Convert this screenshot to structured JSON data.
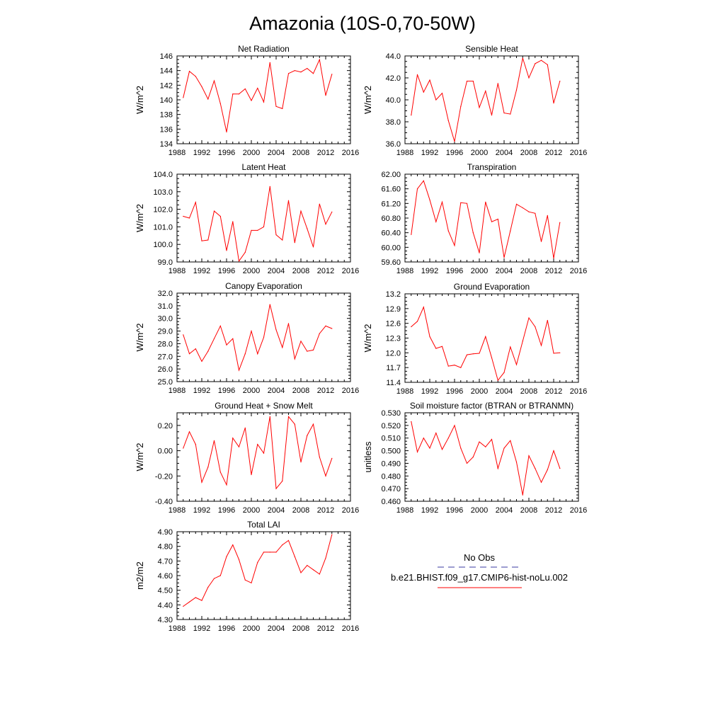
{
  "figure": {
    "title": "Amazonia (10S-0,70-50W)"
  },
  "colors": {
    "model": "#ff0000",
    "obs": "#3a3aa0"
  },
  "legend": {
    "placement": "bottom-right",
    "obs_label": "No Obs",
    "model_label": "b.e21.BHIST.f09_g17.CMIP6-hist-noLu.002"
  },
  "chart_data": [
    {
      "type": "line",
      "title": "Net Radiation",
      "ylabel": "W/m^2",
      "xlim": [
        1988,
        2016
      ],
      "xticks": [
        1988,
        1992,
        1996,
        2000,
        2004,
        2008,
        2012,
        2016
      ],
      "ylim": [
        134,
        146
      ],
      "yticks": [
        "134",
        "136",
        "138",
        "140",
        "142",
        "144",
        "146"
      ],
      "grid": false,
      "x": [
        1989,
        1990,
        1991,
        1992,
        1993,
        1994,
        1995,
        1996,
        1997,
        1998,
        1999,
        2000,
        2001,
        2002,
        2003,
        2004,
        2005,
        2006,
        2007,
        2008,
        2009,
        2010,
        2011,
        2012,
        2013
      ],
      "series": [
        {
          "name": "b.e21.BHIST.f09_g17.CMIP6-hist-noLu.002",
          "values": [
            140.3,
            143.9,
            143.2,
            141.8,
            140.1,
            142.6,
            139.5,
            135.6,
            140.8,
            140.8,
            141.5,
            139.9,
            141.6,
            139.7,
            145.1,
            139.1,
            138.8,
            143.6,
            144.0,
            143.8,
            144.3,
            143.6,
            145.5,
            140.6,
            143.5
          ]
        }
      ]
    },
    {
      "type": "line",
      "title": "Sensible Heat",
      "ylabel": "W/m^2",
      "xlim": [
        1988,
        2016
      ],
      "xticks": [
        1988,
        1992,
        1996,
        2000,
        2004,
        2008,
        2012,
        2016
      ],
      "ylim": [
        36.0,
        44.0
      ],
      "yticks": [
        "36.0",
        "38.0",
        "40.0",
        "42.0",
        "44.0"
      ],
      "grid": false,
      "x": [
        1989,
        1990,
        1991,
        1992,
        1993,
        1994,
        1995,
        1996,
        1997,
        1998,
        1999,
        2000,
        2001,
        2002,
        2003,
        2004,
        2005,
        2006,
        2007,
        2008,
        2009,
        2010,
        2011,
        2012,
        2013
      ],
      "series": [
        {
          "name": "b.e21.BHIST.f09_g17.CMIP6-hist-noLu.002",
          "values": [
            38.6,
            42.3,
            40.7,
            41.8,
            40.0,
            40.6,
            38.1,
            36.2,
            39.4,
            41.7,
            41.7,
            39.3,
            40.8,
            38.6,
            41.5,
            38.8,
            38.7,
            40.9,
            43.8,
            42.0,
            43.3,
            43.6,
            43.2,
            39.7,
            41.7
          ]
        }
      ]
    },
    {
      "type": "line",
      "title": "Latent Heat",
      "ylabel": "W/m^2",
      "xlim": [
        1988,
        2016
      ],
      "xticks": [
        1988,
        1992,
        1996,
        2000,
        2004,
        2008,
        2012,
        2016
      ],
      "ylim": [
        99.0,
        104.0
      ],
      "yticks": [
        "99.0",
        "100.0",
        "101.0",
        "102.0",
        "103.0",
        "104.0"
      ],
      "grid": false,
      "x": [
        1989,
        1990,
        1991,
        1992,
        1993,
        1994,
        1995,
        1996,
        1997,
        1998,
        1999,
        2000,
        2001,
        2002,
        2003,
        2004,
        2005,
        2006,
        2007,
        2008,
        2009,
        2010,
        2011,
        2012,
        2013
      ],
      "series": [
        {
          "name": "b.e21.BHIST.f09_g17.CMIP6-hist-noLu.002",
          "values": [
            101.6,
            101.5,
            102.4,
            100.2,
            100.25,
            101.9,
            101.6,
            99.65,
            101.3,
            99.05,
            99.55,
            100.8,
            100.8,
            101.0,
            103.3,
            100.55,
            100.25,
            102.5,
            100.1,
            101.9,
            100.9,
            99.85,
            102.3,
            101.15,
            101.85
          ]
        }
      ]
    },
    {
      "type": "line",
      "title": "Transpiration",
      "ylabel": "",
      "xlim": [
        1988,
        2016
      ],
      "xticks": [
        1988,
        1992,
        1996,
        2000,
        2004,
        2008,
        2012,
        2016
      ],
      "ylim": [
        59.6,
        62.0
      ],
      "yticks": [
        "59.60",
        "60.00",
        "60.40",
        "60.80",
        "61.20",
        "61.60",
        "62.00"
      ],
      "grid": false,
      "x": [
        1989,
        1990,
        1991,
        1992,
        1993,
        1994,
        1995,
        1996,
        1997,
        1998,
        1999,
        2000,
        2001,
        2002,
        2003,
        2004,
        2005,
        2006,
        2007,
        2008,
        2009,
        2010,
        2011,
        2012,
        2013
      ],
      "series": [
        {
          "name": "b.e21.BHIST.f09_g17.CMIP6-hist-noLu.002",
          "values": [
            60.35,
            61.6,
            61.82,
            61.3,
            60.7,
            61.24,
            60.45,
            60.05,
            61.22,
            61.2,
            60.4,
            59.85,
            61.24,
            60.7,
            60.77,
            59.72,
            60.45,
            61.18,
            61.08,
            60.97,
            60.93,
            60.16,
            60.87,
            59.7,
            60.68
          ]
        }
      ]
    },
    {
      "type": "line",
      "title": "Canopy Evaporation",
      "ylabel": "W/m^2",
      "xlim": [
        1988,
        2016
      ],
      "xticks": [
        1988,
        1992,
        1996,
        2000,
        2004,
        2008,
        2012,
        2016
      ],
      "ylim": [
        25.0,
        32.0
      ],
      "yticks": [
        "25.0",
        "26.0",
        "27.0",
        "28.0",
        "29.0",
        "30.0",
        "31.0",
        "32.0"
      ],
      "grid": false,
      "x": [
        1989,
        1990,
        1991,
        1992,
        1993,
        1994,
        1995,
        1996,
        1997,
        1998,
        1999,
        2000,
        2001,
        2002,
        2003,
        2004,
        2005,
        2006,
        2007,
        2008,
        2009,
        2010,
        2011,
        2012,
        2013
      ],
      "series": [
        {
          "name": "b.e21.BHIST.f09_g17.CMIP6-hist-noLu.002",
          "values": [
            28.7,
            27.2,
            27.6,
            26.6,
            27.4,
            28.4,
            29.4,
            27.9,
            28.4,
            25.9,
            27.2,
            29.0,
            27.2,
            28.5,
            31.1,
            29.1,
            27.7,
            29.6,
            26.8,
            28.2,
            27.4,
            27.5,
            28.8,
            29.4,
            29.2
          ]
        }
      ]
    },
    {
      "type": "line",
      "title": "Ground Evaporation",
      "ylabel": "W/m^2",
      "xlim": [
        1988,
        2016
      ],
      "xticks": [
        1988,
        1992,
        1996,
        2000,
        2004,
        2008,
        2012,
        2016
      ],
      "ylim": [
        11.4,
        13.2
      ],
      "yticks": [
        "11.4",
        "11.7",
        "12.0",
        "12.3",
        "12.6",
        "12.9",
        "13.2"
      ],
      "grid": false,
      "x": [
        1989,
        1990,
        1991,
        1992,
        1993,
        1994,
        1995,
        1996,
        1997,
        1998,
        1999,
        2000,
        2001,
        2002,
        2003,
        2004,
        2005,
        2006,
        2007,
        2008,
        2009,
        2010,
        2011,
        2012,
        2013
      ],
      "series": [
        {
          "name": "b.e21.BHIST.f09_g17.CMIP6-hist-noLu.002",
          "values": [
            12.53,
            12.64,
            12.93,
            12.33,
            12.09,
            12.13,
            11.73,
            11.75,
            11.7,
            11.96,
            11.98,
            11.99,
            12.33,
            11.9,
            11.44,
            11.6,
            12.12,
            11.76,
            12.24,
            12.71,
            12.53,
            12.15,
            12.66,
            11.99,
            12.0
          ]
        }
      ]
    },
    {
      "type": "line",
      "title": "Ground Heat + Snow Melt",
      "ylabel": "W/m^2",
      "xlim": [
        1988,
        2016
      ],
      "xticks": [
        1988,
        1992,
        1996,
        2000,
        2004,
        2008,
        2012,
        2016
      ],
      "ylim": [
        -0.4,
        0.3
      ],
      "yticks": [
        "-0.40",
        "-0.20",
        "0.00",
        "0.20"
      ],
      "ytick_values": [
        -0.4,
        -0.2,
        0.0,
        0.2
      ],
      "grid": false,
      "x": [
        1989,
        1990,
        1991,
        1992,
        1993,
        1994,
        1995,
        1996,
        1997,
        1998,
        1999,
        2000,
        2001,
        2002,
        2003,
        2004,
        2005,
        2006,
        2007,
        2008,
        2009,
        2010,
        2011,
        2012,
        2013
      ],
      "series": [
        {
          "name": "b.e21.BHIST.f09_g17.CMIP6-hist-noLu.002",
          "values": [
            0.02,
            0.15,
            0.05,
            -0.25,
            -0.13,
            0.08,
            -0.17,
            -0.27,
            0.1,
            0.03,
            0.18,
            -0.19,
            0.05,
            -0.02,
            0.27,
            -0.3,
            -0.24,
            0.27,
            0.21,
            -0.09,
            0.12,
            0.21,
            -0.05,
            -0.2,
            -0.06
          ]
        }
      ]
    },
    {
      "type": "line",
      "title": "Soil moisture factor (BTRAN or BTRANMN)",
      "ylabel": "unitless",
      "xlim": [
        1988,
        2016
      ],
      "xticks": [
        1988,
        1992,
        1996,
        2000,
        2004,
        2008,
        2012,
        2016
      ],
      "ylim": [
        0.46,
        0.53
      ],
      "yticks": [
        "0.460",
        "0.470",
        "0.480",
        "0.490",
        "0.500",
        "0.510",
        "0.520",
        "0.530"
      ],
      "grid": false,
      "x": [
        1989,
        1990,
        1991,
        1992,
        1993,
        1994,
        1995,
        1996,
        1997,
        1998,
        1999,
        2000,
        2001,
        2002,
        2003,
        2004,
        2005,
        2006,
        2007,
        2008,
        2009,
        2010,
        2011,
        2012,
        2013
      ],
      "series": [
        {
          "name": "b.e21.BHIST.f09_g17.CMIP6-hist-noLu.002",
          "values": [
            0.523,
            0.499,
            0.51,
            0.502,
            0.514,
            0.501,
            0.51,
            0.52,
            0.502,
            0.49,
            0.495,
            0.507,
            0.503,
            0.509,
            0.486,
            0.502,
            0.508,
            0.491,
            0.465,
            0.496,
            0.486,
            0.475,
            0.485,
            0.5,
            0.486
          ]
        }
      ]
    },
    {
      "type": "line",
      "title": "Total LAI",
      "ylabel": "m2/m2",
      "xlim": [
        1988,
        2016
      ],
      "xticks": [
        1988,
        1992,
        1996,
        2000,
        2004,
        2008,
        2012,
        2016
      ],
      "ylim": [
        4.3,
        4.9
      ],
      "yticks": [
        "4.30",
        "4.40",
        "4.50",
        "4.60",
        "4.70",
        "4.80",
        "4.90"
      ],
      "grid": false,
      "x": [
        1989,
        1990,
        1991,
        1992,
        1993,
        1994,
        1995,
        1996,
        1997,
        1998,
        1999,
        2000,
        2001,
        2002,
        2003,
        2004,
        2005,
        2006,
        2007,
        2008,
        2009,
        2010,
        2011,
        2012,
        2013
      ],
      "series": [
        {
          "name": "b.e21.BHIST.f09_g17.CMIP6-hist-noLu.002",
          "values": [
            4.39,
            4.42,
            4.45,
            4.43,
            4.52,
            4.58,
            4.6,
            4.73,
            4.81,
            4.71,
            4.57,
            4.55,
            4.69,
            4.76,
            4.76,
            4.76,
            4.81,
            4.84,
            4.73,
            4.62,
            4.67,
            4.64,
            4.61,
            4.72,
            4.88
          ]
        }
      ]
    }
  ]
}
